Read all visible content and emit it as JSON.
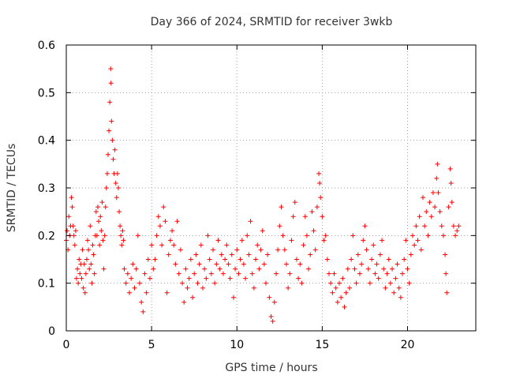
{
  "chart_data": {
    "type": "scatter",
    "title": "Day 366 of 2024, SRMTID for receiver 3wkb",
    "xlabel": "GPS time / hours",
    "ylabel": "SRMTID / TECUs",
    "xlim": [
      0,
      24
    ],
    "ylim": [
      0,
      0.6
    ],
    "xticks": [
      0,
      5,
      10,
      15,
      20
    ],
    "yticks": [
      0,
      0.1,
      0.2,
      0.3,
      0.4,
      0.5,
      0.6
    ],
    "grid": true,
    "marker": "+",
    "color": "#ff0000",
    "series": [
      {
        "name": "SRMTID",
        "points": [
          [
            0.0,
            0.19
          ],
          [
            0.05,
            0.21
          ],
          [
            0.1,
            0.17
          ],
          [
            0.15,
            0.24
          ],
          [
            0.2,
            0.2
          ],
          [
            0.25,
            0.22
          ],
          [
            0.3,
            0.28
          ],
          [
            0.35,
            0.26
          ],
          [
            0.4,
            0.22
          ],
          [
            0.45,
            0.2
          ],
          [
            0.5,
            0.18
          ],
          [
            0.55,
            0.21
          ],
          [
            0.6,
            0.11
          ],
          [
            0.65,
            0.13
          ],
          [
            0.7,
            0.1
          ],
          [
            0.75,
            0.15
          ],
          [
            0.8,
            0.12
          ],
          [
            0.85,
            0.14
          ],
          [
            0.9,
            0.11
          ],
          [
            0.95,
            0.17
          ],
          [
            1.0,
            0.09
          ],
          [
            1.05,
            0.14
          ],
          [
            1.1,
            0.08
          ],
          [
            1.15,
            0.12
          ],
          [
            1.2,
            0.15
          ],
          [
            1.25,
            0.19
          ],
          [
            1.3,
            0.17
          ],
          [
            1.35,
            0.13
          ],
          [
            1.4,
            0.22
          ],
          [
            1.45,
            0.14
          ],
          [
            1.5,
            0.1
          ],
          [
            1.55,
            0.18
          ],
          [
            1.6,
            0.16
          ],
          [
            1.65,
            0.12
          ],
          [
            1.7,
            0.2
          ],
          [
            1.75,
            0.25
          ],
          [
            1.8,
            0.2
          ],
          [
            1.85,
            0.26
          ],
          [
            1.9,
            0.23
          ],
          [
            1.95,
            0.18
          ],
          [
            2.0,
            0.24
          ],
          [
            2.05,
            0.21
          ],
          [
            2.1,
            0.27
          ],
          [
            2.15,
            0.19
          ],
          [
            2.2,
            0.13
          ],
          [
            2.25,
            0.2
          ],
          [
            2.3,
            0.26
          ],
          [
            2.35,
            0.3
          ],
          [
            2.4,
            0.33
          ],
          [
            2.45,
            0.37
          ],
          [
            2.5,
            0.42
          ],
          [
            2.55,
            0.48
          ],
          [
            2.6,
            0.55
          ],
          [
            2.62,
            0.52
          ],
          [
            2.65,
            0.44
          ],
          [
            2.7,
            0.4
          ],
          [
            2.75,
            0.36
          ],
          [
            2.8,
            0.33
          ],
          [
            2.85,
            0.38
          ],
          [
            2.9,
            0.31
          ],
          [
            2.95,
            0.28
          ],
          [
            3.0,
            0.33
          ],
          [
            3.05,
            0.3
          ],
          [
            3.1,
            0.25
          ],
          [
            3.15,
            0.22
          ],
          [
            3.2,
            0.2
          ],
          [
            3.25,
            0.18
          ],
          [
            3.3,
            0.21
          ],
          [
            3.35,
            0.19
          ],
          [
            3.4,
            0.13
          ],
          [
            3.5,
            0.1
          ],
          [
            3.6,
            0.12
          ],
          [
            3.7,
            0.08
          ],
          [
            3.8,
            0.11
          ],
          [
            3.9,
            0.14
          ],
          [
            4.0,
            0.09
          ],
          [
            4.1,
            0.13
          ],
          [
            4.2,
            0.2
          ],
          [
            4.3,
            0.1
          ],
          [
            4.4,
            0.06
          ],
          [
            4.5,
            0.04
          ],
          [
            4.6,
            0.12
          ],
          [
            4.7,
            0.08
          ],
          [
            4.8,
            0.15
          ],
          [
            4.9,
            0.11
          ],
          [
            5.0,
            0.18
          ],
          [
            5.1,
            0.13
          ],
          [
            5.2,
            0.15
          ],
          [
            5.3,
            0.2
          ],
          [
            5.4,
            0.24
          ],
          [
            5.5,
            0.22
          ],
          [
            5.6,
            0.18
          ],
          [
            5.7,
            0.26
          ],
          [
            5.8,
            0.23
          ],
          [
            5.9,
            0.08
          ],
          [
            6.0,
            0.16
          ],
          [
            6.1,
            0.19
          ],
          [
            6.2,
            0.21
          ],
          [
            6.3,
            0.18
          ],
          [
            6.4,
            0.14
          ],
          [
            6.5,
            0.23
          ],
          [
            6.6,
            0.12
          ],
          [
            6.7,
            0.17
          ],
          [
            6.8,
            0.1
          ],
          [
            6.9,
            0.06
          ],
          [
            7.0,
            0.13
          ],
          [
            7.1,
            0.09
          ],
          [
            7.2,
            0.11
          ],
          [
            7.3,
            0.15
          ],
          [
            7.4,
            0.07
          ],
          [
            7.5,
            0.12
          ],
          [
            7.6,
            0.16
          ],
          [
            7.7,
            0.1
          ],
          [
            7.8,
            0.14
          ],
          [
            7.9,
            0.18
          ],
          [
            8.0,
            0.09
          ],
          [
            8.1,
            0.13
          ],
          [
            8.2,
            0.11
          ],
          [
            8.3,
            0.2
          ],
          [
            8.4,
            0.15
          ],
          [
            8.5,
            0.12
          ],
          [
            8.6,
            0.17
          ],
          [
            8.7,
            0.1
          ],
          [
            8.8,
            0.14
          ],
          [
            8.9,
            0.19
          ],
          [
            9.0,
            0.13
          ],
          [
            9.1,
            0.16
          ],
          [
            9.2,
            0.12
          ],
          [
            9.3,
            0.15
          ],
          [
            9.4,
            0.18
          ],
          [
            9.5,
            0.14
          ],
          [
            9.6,
            0.11
          ],
          [
            9.7,
            0.16
          ],
          [
            9.8,
            0.07
          ],
          [
            9.9,
            0.13
          ],
          [
            10.0,
            0.17
          ],
          [
            10.1,
            0.12
          ],
          [
            10.2,
            0.15
          ],
          [
            10.3,
            0.19
          ],
          [
            10.4,
            0.14
          ],
          [
            10.5,
            0.11
          ],
          [
            10.6,
            0.2
          ],
          [
            10.7,
            0.16
          ],
          [
            10.8,
            0.23
          ],
          [
            10.9,
            0.12
          ],
          [
            11.0,
            0.09
          ],
          [
            11.1,
            0.15
          ],
          [
            11.2,
            0.18
          ],
          [
            11.3,
            0.13
          ],
          [
            11.4,
            0.17
          ],
          [
            11.5,
            0.21
          ],
          [
            11.6,
            0.14
          ],
          [
            11.7,
            0.1
          ],
          [
            11.8,
            0.16
          ],
          [
            11.9,
            0.07
          ],
          [
            12.0,
            0.03
          ],
          [
            12.1,
            0.02
          ],
          [
            12.2,
            0.06
          ],
          [
            12.3,
            0.12
          ],
          [
            12.4,
            0.17
          ],
          [
            12.5,
            0.22
          ],
          [
            12.6,
            0.26
          ],
          [
            12.7,
            0.2
          ],
          [
            12.8,
            0.17
          ],
          [
            12.9,
            0.14
          ],
          [
            13.0,
            0.09
          ],
          [
            13.1,
            0.12
          ],
          [
            13.2,
            0.19
          ],
          [
            13.3,
            0.24
          ],
          [
            13.4,
            0.27
          ],
          [
            13.5,
            0.15
          ],
          [
            13.6,
            0.11
          ],
          [
            13.7,
            0.14
          ],
          [
            13.8,
            0.1
          ],
          [
            13.9,
            0.18
          ],
          [
            14.0,
            0.24
          ],
          [
            14.1,
            0.2
          ],
          [
            14.2,
            0.13
          ],
          [
            14.3,
            0.16
          ],
          [
            14.4,
            0.25
          ],
          [
            14.5,
            0.21
          ],
          [
            14.6,
            0.17
          ],
          [
            14.7,
            0.26
          ],
          [
            14.8,
            0.33
          ],
          [
            14.85,
            0.31
          ],
          [
            14.9,
            0.28
          ],
          [
            15.0,
            0.24
          ],
          [
            15.1,
            0.19
          ],
          [
            15.2,
            0.2
          ],
          [
            15.3,
            0.15
          ],
          [
            15.4,
            0.12
          ],
          [
            15.5,
            0.1
          ],
          [
            15.6,
            0.08
          ],
          [
            15.7,
            0.12
          ],
          [
            15.8,
            0.09
          ],
          [
            15.9,
            0.06
          ],
          [
            16.0,
            0.1
          ],
          [
            16.1,
            0.07
          ],
          [
            16.2,
            0.11
          ],
          [
            16.3,
            0.05
          ],
          [
            16.4,
            0.08
          ],
          [
            16.5,
            0.13
          ],
          [
            16.6,
            0.09
          ],
          [
            16.7,
            0.15
          ],
          [
            16.8,
            0.2
          ],
          [
            16.9,
            0.13
          ],
          [
            17.0,
            0.1
          ],
          [
            17.1,
            0.16
          ],
          [
            17.2,
            0.12
          ],
          [
            17.3,
            0.14
          ],
          [
            17.4,
            0.19
          ],
          [
            17.5,
            0.22
          ],
          [
            17.6,
            0.17
          ],
          [
            17.7,
            0.13
          ],
          [
            17.8,
            0.1
          ],
          [
            17.9,
            0.15
          ],
          [
            18.0,
            0.18
          ],
          [
            18.1,
            0.12
          ],
          [
            18.2,
            0.14
          ],
          [
            18.3,
            0.11
          ],
          [
            18.4,
            0.16
          ],
          [
            18.5,
            0.19
          ],
          [
            18.6,
            0.13
          ],
          [
            18.7,
            0.09
          ],
          [
            18.8,
            0.12
          ],
          [
            18.9,
            0.15
          ],
          [
            19.0,
            0.1
          ],
          [
            19.1,
            0.13
          ],
          [
            19.2,
            0.08
          ],
          [
            19.3,
            0.11
          ],
          [
            19.4,
            0.14
          ],
          [
            19.5,
            0.09
          ],
          [
            19.6,
            0.07
          ],
          [
            19.7,
            0.12
          ],
          [
            19.8,
            0.15
          ],
          [
            19.9,
            0.19
          ],
          [
            20.0,
            0.13
          ],
          [
            20.1,
            0.1
          ],
          [
            20.2,
            0.16
          ],
          [
            20.3,
            0.2
          ],
          [
            20.4,
            0.18
          ],
          [
            20.5,
            0.22
          ],
          [
            20.6,
            0.19
          ],
          [
            20.7,
            0.24
          ],
          [
            20.8,
            0.17
          ],
          [
            20.9,
            0.28
          ],
          [
            21.0,
            0.22
          ],
          [
            21.1,
            0.25
          ],
          [
            21.2,
            0.2
          ],
          [
            21.3,
            0.27
          ],
          [
            21.4,
            0.24
          ],
          [
            21.5,
            0.29
          ],
          [
            21.6,
            0.26
          ],
          [
            21.7,
            0.32
          ],
          [
            21.75,
            0.35
          ],
          [
            21.8,
            0.29
          ],
          [
            21.9,
            0.25
          ],
          [
            22.0,
            0.22
          ],
          [
            22.1,
            0.2
          ],
          [
            22.2,
            0.16
          ],
          [
            22.25,
            0.12
          ],
          [
            22.3,
            0.08
          ],
          [
            22.4,
            0.26
          ],
          [
            22.5,
            0.34
          ],
          [
            22.55,
            0.31
          ],
          [
            22.6,
            0.27
          ],
          [
            22.7,
            0.22
          ],
          [
            22.8,
            0.2
          ],
          [
            22.9,
            0.21
          ],
          [
            23.0,
            0.22
          ]
        ]
      }
    ]
  }
}
